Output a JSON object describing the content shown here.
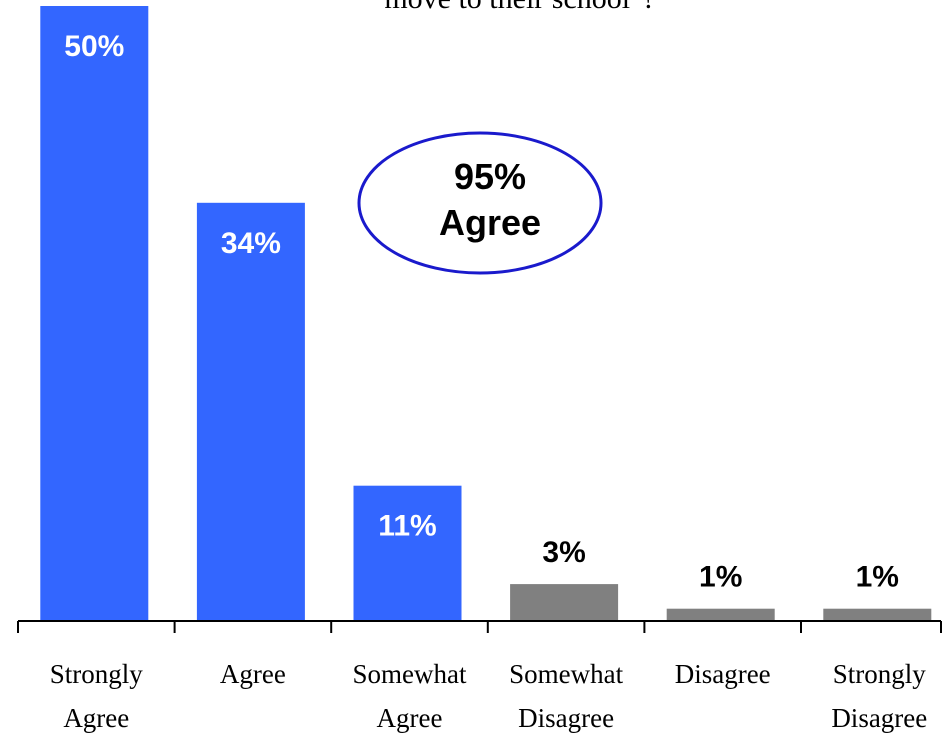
{
  "chart_data": {
    "type": "bar",
    "title": "move to their school\"?",
    "categories": [
      [
        "Strongly",
        "Agree"
      ],
      [
        "Agree"
      ],
      [
        "Somewhat",
        "Agree"
      ],
      [
        "Somewhat",
        "Disagree"
      ],
      [
        "Disagree"
      ],
      [
        "Strongly",
        "Disagree"
      ]
    ],
    "values": [
      50,
      34,
      11,
      3,
      1,
      1
    ],
    "value_labels": [
      "50%",
      "34%",
      "11%",
      "3%",
      "1%",
      "1%"
    ],
    "bar_colors": [
      "#3366ff",
      "#3366ff",
      "#3366ff",
      "#808080",
      "#808080",
      "#808080"
    ],
    "ylim": [
      0,
      52
    ],
    "xlabel": "",
    "ylabel": "",
    "grid": false,
    "annotation": {
      "lines": [
        "95%",
        "Agree"
      ],
      "border_color": "#1a1acc"
    }
  }
}
